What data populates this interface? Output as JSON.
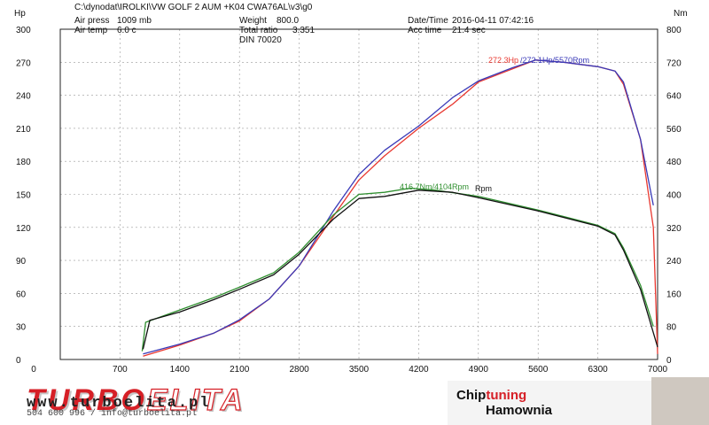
{
  "header": {
    "file_path": "C:\\dynodat\\IROLKI\\VW GOLF 2 AUM +K04 CWA76AL\\v3\\g0",
    "air_press_label": "Air press",
    "air_press_value": "1009 mb",
    "air_temp_label": "Air temp",
    "air_temp_value": "6.0 c",
    "weight_label": "Weight",
    "weight_value": "800.0",
    "total_ratio_label": "Total ratio",
    "total_ratio_value": "3.351",
    "din_label": "DIN",
    "din_value": "70020",
    "datetime_label": "Date/Time",
    "datetime_value": "2016-04-11 07:42:16",
    "acc_time_label": "Acc time",
    "acc_time_value": "21.4 sec"
  },
  "footer": {
    "logo_text_part1": "TURBO",
    "logo_text_part2": "ELITA",
    "website": "www.turboelita.pl",
    "contact": "504 600 996 / info@turboelita.pl",
    "badge_part1": "Chip",
    "badge_part2": "tuning",
    "badge_line2": "Hamownia"
  },
  "colors": {
    "hp_red": "#e8372f",
    "hp_blue": "#3a3ab8",
    "nm_green": "#2f8f2f",
    "nm_black": "#111111",
    "brand_red": "#d61f26"
  },
  "chart_data": {
    "type": "line",
    "left_axis_label": "Hp",
    "right_axis_label": "Nm",
    "x_ticks": [
      "0",
      "700",
      "1400",
      "2100",
      "2800",
      "3500",
      "4200",
      "4900",
      "5600",
      "6300",
      "7000"
    ],
    "left_ticks": [
      "0",
      "30",
      "60",
      "90",
      "120",
      "150",
      "180",
      "210",
      "240",
      "270",
      "300"
    ],
    "right_ticks": [
      "0",
      "80",
      "160",
      "240",
      "320",
      "400",
      "480",
      "560",
      "640",
      "720",
      "800"
    ],
    "xlim": [
      0,
      7000
    ],
    "ylim_left": [
      0,
      300
    ],
    "ylim_right": [
      0,
      800
    ],
    "grid": true,
    "annotations": {
      "hp_red_peak": "272.3Hp",
      "hp_blue_peak": "/272.1Hp/5570Rpm",
      "torque_peak": "416.7Nm/4104Rpm",
      "torque_peak_suffix": "Rpm"
    },
    "series": [
      {
        "unit": "Hp",
        "color": "#e8372f",
        "points": [
          [
            970,
            3
          ],
          [
            1400,
            13
          ],
          [
            1800,
            24
          ],
          [
            2100,
            35
          ],
          [
            2450,
            55
          ],
          [
            2800,
            85
          ],
          [
            3200,
            130
          ],
          [
            3500,
            163
          ],
          [
            3800,
            185
          ],
          [
            4200,
            210
          ],
          [
            4600,
            232
          ],
          [
            4900,
            252
          ],
          [
            5300,
            264
          ],
          [
            5570,
            272
          ],
          [
            5900,
            270
          ],
          [
            6300,
            266
          ],
          [
            6500,
            262
          ],
          [
            6600,
            250
          ],
          [
            6800,
            200
          ],
          [
            6950,
            120
          ],
          [
            7000,
            5
          ]
        ]
      },
      {
        "unit": "Hp",
        "color": "#3a3ab8",
        "points": [
          [
            970,
            5
          ],
          [
            1400,
            14
          ],
          [
            1800,
            24
          ],
          [
            2100,
            36
          ],
          [
            2450,
            55
          ],
          [
            2800,
            85
          ],
          [
            3200,
            135
          ],
          [
            3500,
            168
          ],
          [
            3800,
            190
          ],
          [
            4200,
            212
          ],
          [
            4600,
            238
          ],
          [
            4900,
            253
          ],
          [
            5300,
            265
          ],
          [
            5570,
            272
          ],
          [
            5900,
            270
          ],
          [
            6300,
            266
          ],
          [
            6500,
            262
          ],
          [
            6600,
            252
          ],
          [
            6800,
            200
          ],
          [
            6950,
            140
          ]
        ]
      },
      {
        "unit": "Nm",
        "color": "#2f8f2f",
        "points": [
          [
            960,
            20
          ],
          [
            1000,
            90
          ],
          [
            1400,
            120
          ],
          [
            1800,
            150
          ],
          [
            2100,
            175
          ],
          [
            2500,
            210
          ],
          [
            2800,
            260
          ],
          [
            3200,
            350
          ],
          [
            3500,
            400
          ],
          [
            3800,
            405
          ],
          [
            4104,
            415
          ],
          [
            4400,
            410
          ],
          [
            4900,
            395
          ],
          [
            5600,
            362
          ],
          [
            6300,
            325
          ],
          [
            6500,
            305
          ],
          [
            6600,
            270
          ],
          [
            6800,
            180
          ],
          [
            6950,
            80
          ]
        ]
      },
      {
        "unit": "Nm",
        "color": "#111111",
        "points": [
          [
            970,
            25
          ],
          [
            1050,
            95
          ],
          [
            1400,
            115
          ],
          [
            1800,
            145
          ],
          [
            2100,
            170
          ],
          [
            2500,
            205
          ],
          [
            2800,
            255
          ],
          [
            3200,
            340
          ],
          [
            3500,
            390
          ],
          [
            3800,
            395
          ],
          [
            4200,
            410
          ],
          [
            4600,
            405
          ],
          [
            4900,
            392
          ],
          [
            5600,
            360
          ],
          [
            6300,
            323
          ],
          [
            6500,
            302
          ],
          [
            6600,
            265
          ],
          [
            6800,
            170
          ],
          [
            7000,
            30
          ]
        ]
      }
    ]
  }
}
